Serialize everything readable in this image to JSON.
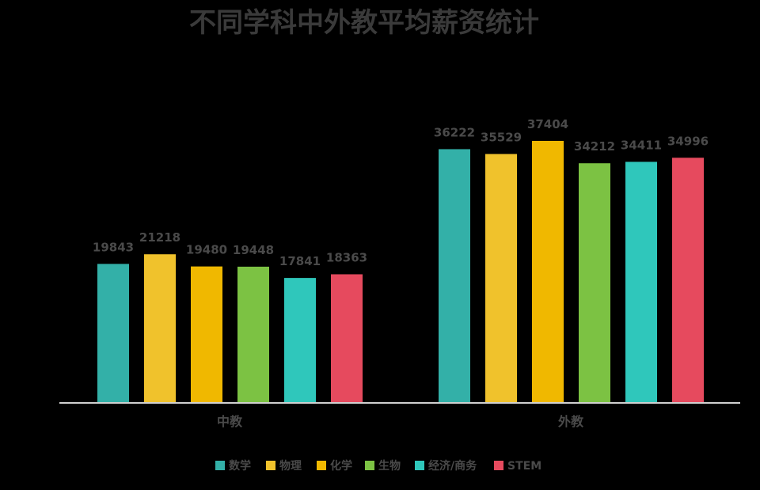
{
  "chart_data": {
    "type": "bar",
    "title": "不同学科中外教平均薪资统计",
    "categories": [
      "中教",
      "外教"
    ],
    "series": [
      {
        "name": "数学",
        "color": "#33b0a8",
        "values": [
          19843,
          36222
        ]
      },
      {
        "name": "物理",
        "color": "#f0c22c",
        "values": [
          21218,
          35529
        ]
      },
      {
        "name": "化学",
        "color": "#f0b800",
        "values": [
          19480,
          37404
        ]
      },
      {
        "name": "生物",
        "color": "#7cc243",
        "values": [
          19448,
          34212
        ]
      },
      {
        "name": "经济/商务",
        "color": "#2fc7bb",
        "values": [
          17841,
          34411
        ]
      },
      {
        "name": "STEM",
        "color": "#e64a5e",
        "values": [
          18363,
          34996
        ]
      }
    ],
    "ylim": [
      0,
      40000
    ],
    "grid": false,
    "legend": "bottom"
  }
}
